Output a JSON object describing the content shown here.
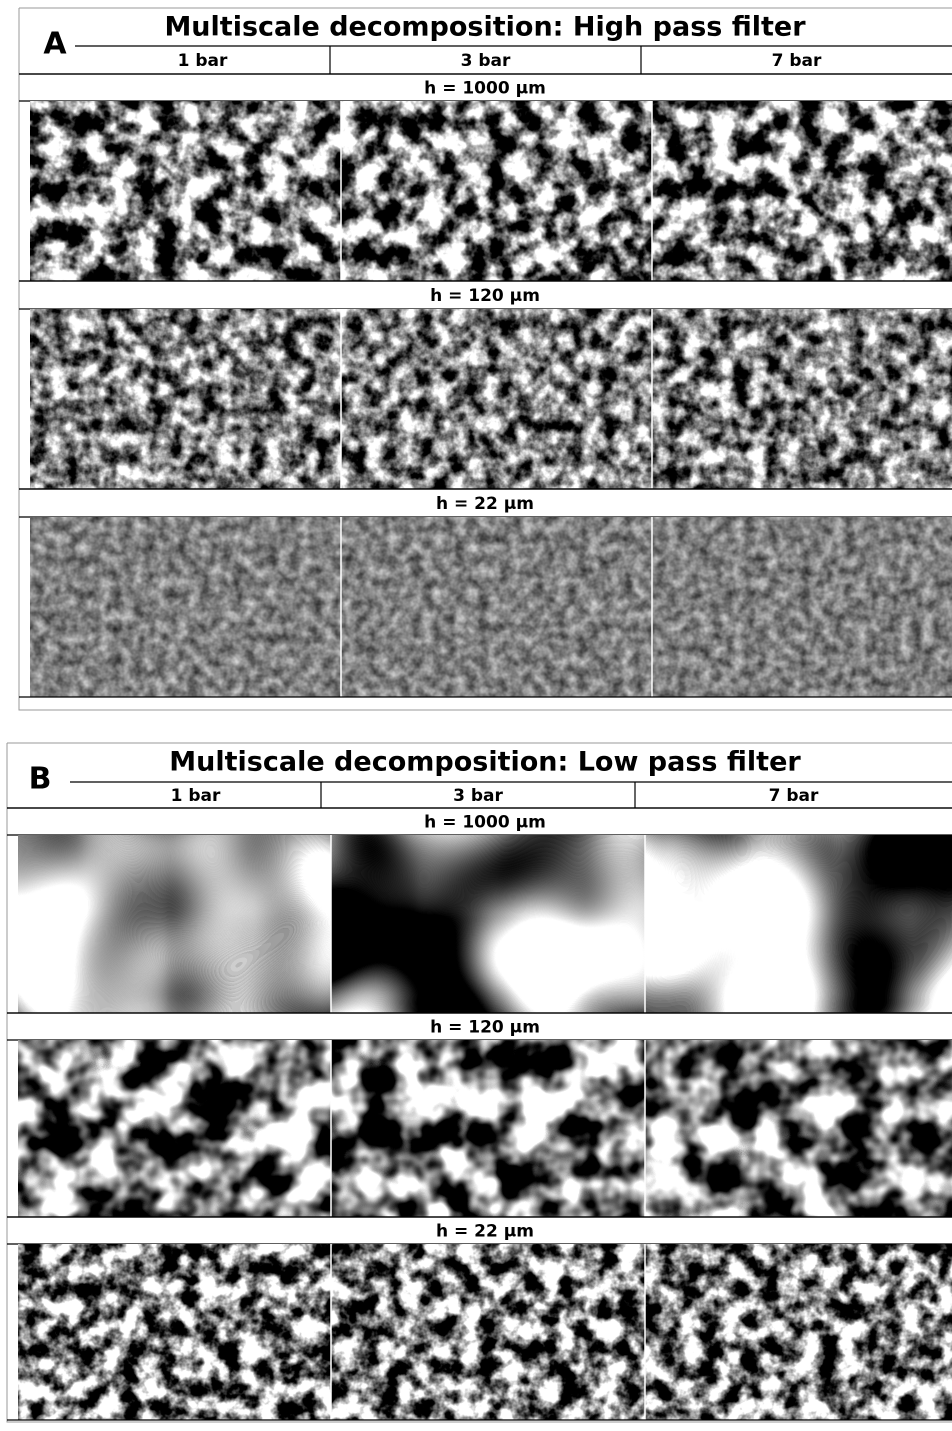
{
  "panels": [
    {
      "label": "A",
      "title": "Multiscale decomposition: High pass filter",
      "columns": [
        "1 bar",
        "3 bar",
        "7 bar"
      ],
      "rows": [
        "h = 1000 µm",
        "h = 120 µm",
        "h = 22 µm"
      ]
    },
    {
      "label": "B",
      "title": "Multiscale decomposition: Low pass filter",
      "columns": [
        "1 bar",
        "3 bar",
        "7 bar"
      ],
      "rows": [
        "h = 1000 µm",
        "h = 120 µm",
        "h = 22 µm"
      ]
    }
  ]
}
